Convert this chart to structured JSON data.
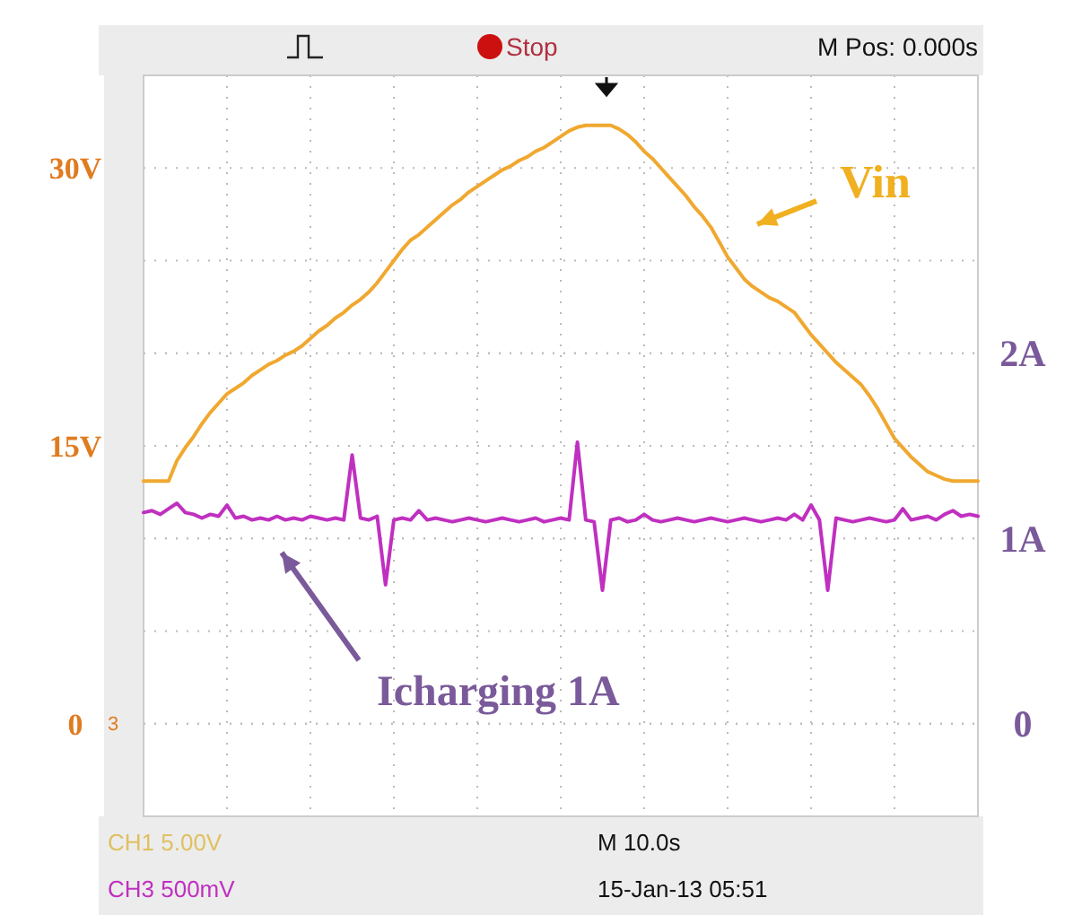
{
  "chart_data": {
    "type": "line",
    "categories": [
      null,
      null,
      null,
      null,
      null,
      null,
      null,
      null,
      null,
      null,
      null,
      null,
      null,
      null,
      null,
      null,
      null,
      null,
      null,
      null,
      null,
      null,
      null,
      null,
      null,
      null,
      null,
      null,
      null,
      null,
      null,
      null,
      null,
      null,
      null,
      null,
      null,
      null,
      null,
      null,
      null,
      null,
      null,
      null,
      null,
      null,
      null,
      null,
      null,
      null,
      null,
      null,
      null,
      null,
      null,
      null,
      null,
      null,
      null,
      null,
      null,
      null,
      null,
      null,
      null,
      null,
      null,
      null,
      null,
      null,
      null,
      null,
      null,
      null,
      null,
      null,
      null,
      null,
      null,
      null,
      null,
      null,
      null,
      null,
      null,
      null,
      null,
      null,
      null,
      null,
      null,
      null,
      null,
      null,
      null,
      null,
      null,
      null,
      null,
      null,
      null
    ],
    "series": [
      {
        "name": "Vin",
        "color": "#f0a830",
        "values": [
          13.1,
          13.1,
          13.1,
          13.1,
          14.2,
          14.9,
          15.5,
          16.2,
          16.8,
          17.3,
          17.8,
          18.1,
          18.4,
          18.8,
          19.1,
          19.4,
          19.6,
          19.9,
          20.1,
          20.4,
          20.8,
          21.2,
          21.5,
          21.9,
          22.2,
          22.6,
          22.9,
          23.3,
          23.8,
          24.4,
          25.0,
          25.6,
          26.1,
          26.4,
          26.8,
          27.2,
          27.6,
          28.0,
          28.3,
          28.7,
          29.0,
          29.3,
          29.6,
          29.9,
          30.1,
          30.4,
          30.6,
          30.9,
          31.1,
          31.4,
          31.7,
          32.0,
          32.2,
          32.3,
          32.3,
          32.3,
          32.3,
          32.1,
          31.8,
          31.4,
          30.9,
          30.5,
          30.0,
          29.5,
          29.0,
          28.5,
          27.9,
          27.4,
          26.8,
          26.0,
          25.2,
          24.6,
          24.0,
          23.6,
          23.3,
          23.0,
          22.8,
          22.5,
          22.2,
          21.6,
          21.0,
          20.5,
          20.0,
          19.5,
          19.1,
          18.7,
          18.3,
          17.7,
          17.0,
          16.2,
          15.4,
          14.9,
          14.4,
          14.0,
          13.6,
          13.4,
          13.2,
          13.1,
          13.1,
          13.1,
          13.1
        ]
      },
      {
        "name": "Icharging 1A",
        "color": "#c030c0",
        "axis": "y2",
        "values": [
          1.14,
          1.15,
          1.13,
          1.16,
          1.19,
          1.14,
          1.13,
          1.11,
          1.13,
          1.12,
          1.18,
          1.11,
          1.12,
          1.1,
          1.11,
          1.1,
          1.12,
          1.1,
          1.11,
          1.1,
          1.12,
          1.11,
          1.1,
          1.11,
          1.1,
          1.45,
          1.11,
          1.1,
          1.12,
          0.75,
          1.1,
          1.11,
          1.1,
          1.15,
          1.1,
          1.11,
          1.1,
          1.09,
          1.1,
          1.11,
          1.1,
          1.09,
          1.1,
          1.11,
          1.1,
          1.09,
          1.1,
          1.11,
          1.09,
          1.1,
          1.11,
          1.1,
          1.52,
          1.1,
          1.09,
          0.72,
          1.1,
          1.11,
          1.09,
          1.1,
          1.13,
          1.1,
          1.09,
          1.1,
          1.11,
          1.1,
          1.09,
          1.1,
          1.11,
          1.1,
          1.09,
          1.1,
          1.11,
          1.1,
          1.09,
          1.1,
          1.11,
          1.1,
          1.13,
          1.1,
          1.18,
          1.1,
          0.72,
          1.11,
          1.1,
          1.09,
          1.1,
          1.11,
          1.1,
          1.09,
          1.1,
          1.16,
          1.1,
          1.11,
          1.12,
          1.1,
          1.13,
          1.15,
          1.12,
          1.13,
          1.12
        ]
      }
    ],
    "ylim": [
      -5,
      35
    ],
    "yticks": [
      {
        "value": 0,
        "label": "0"
      },
      {
        "value": 5,
        "label": null
      },
      {
        "value": 10,
        "label": null
      },
      {
        "value": 15,
        "label": "15V"
      },
      {
        "value": 20,
        "label": null
      },
      {
        "value": 25,
        "label": null
      },
      {
        "value": 30,
        "label": "30V"
      }
    ],
    "y2lim": [
      -0.5,
      3.5
    ],
    "y2ticks": [
      {
        "value": 0,
        "label": "0"
      },
      {
        "value": 1,
        "label": "1A"
      },
      {
        "value": 2,
        "label": "2A"
      }
    ],
    "grid": true,
    "line_style": "solid",
    "annotations": [
      "Stop",
      "M Pos: 0.000s",
      "CH1 5.00V",
      "CH3 500mV",
      "M 10.0s",
      "15-Jan-13 05:51",
      "3"
    ]
  }
}
